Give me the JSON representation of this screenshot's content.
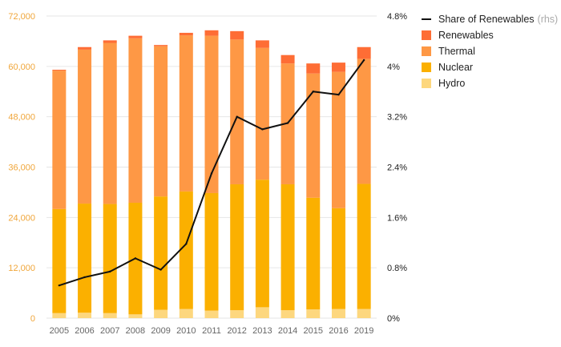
{
  "chart_data": {
    "type": "bar",
    "stacked": true,
    "categories": [
      "2005",
      "2006",
      "2007",
      "2008",
      "2009",
      "2010",
      "2011",
      "2012",
      "2013",
      "2014",
      "2015",
      "2016",
      "2019"
    ],
    "series": [
      {
        "name": "Hydro",
        "color": "#fdd77e",
        "values": [
          1200,
          1300,
          1200,
          900,
          2000,
          2200,
          1800,
          1900,
          2600,
          1900,
          2100,
          2200,
          2200
        ]
      },
      {
        "name": "Nuclear",
        "color": "#fbb000",
        "values": [
          24800,
          26000,
          26000,
          26600,
          27000,
          28000,
          28000,
          30000,
          30400,
          30000,
          26600,
          24000,
          29800
        ]
      },
      {
        "name": "Thermal",
        "color": "#fe9845",
        "values": [
          33000,
          36700,
          38400,
          39200,
          35800,
          37200,
          37500,
          34500,
          31400,
          28800,
          29600,
          32500,
          29800
        ]
      },
      {
        "name": "Renewables",
        "color": "#fe6d35",
        "values": [
          200,
          600,
          600,
          600,
          300,
          600,
          1300,
          2000,
          1800,
          2000,
          2400,
          2200,
          2800
        ]
      }
    ],
    "line": {
      "name": "Share of Renewables",
      "note": "(rhs)",
      "color": "#111111",
      "values": [
        0.52,
        0.65,
        0.74,
        0.95,
        0.77,
        1.18,
        2.3,
        3.2,
        3.0,
        3.1,
        3.6,
        3.55,
        4.1
      ]
    },
    "yleft": {
      "min": 0,
      "max": 72000,
      "ticks": [
        "0",
        "12,000",
        "24,000",
        "36,000",
        "48,000",
        "60,000",
        "72,000"
      ]
    },
    "yright": {
      "min": 0,
      "max": 4.8,
      "ticks": [
        "0%",
        "0.8%",
        "1.6%",
        "2.4%",
        "3.2%",
        "4%",
        "4.8%"
      ]
    },
    "grid": true,
    "legend_position": "top-right"
  }
}
